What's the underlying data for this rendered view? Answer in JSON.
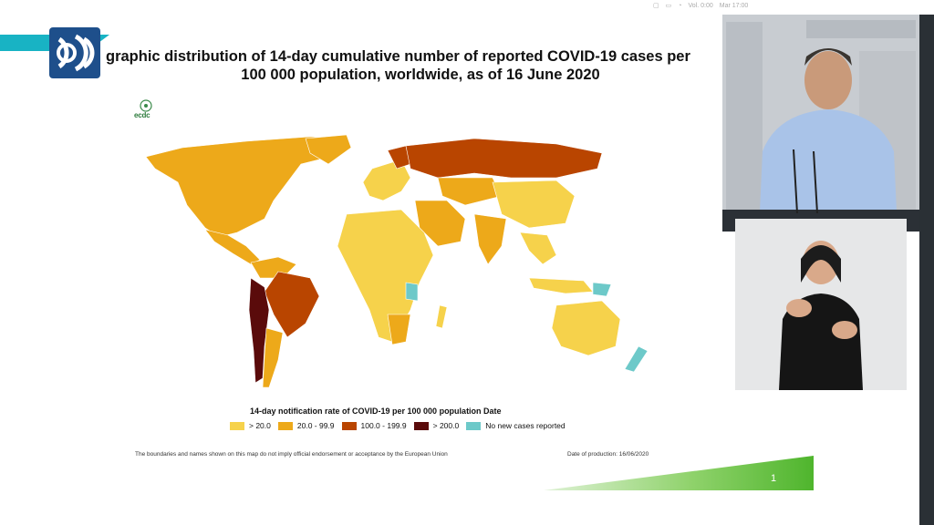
{
  "header": {
    "title_line1": "graphic distribution of 14-day cumulative number of reported COVID-19 cases per",
    "title_line2": "100 000 population, worldwide, as of 16 June 2020"
  },
  "topbar": {
    "time_label": "Vol. 0:00",
    "date_label": "Mar 17:00"
  },
  "ecdc_logo_text": "ecdc",
  "legend": {
    "title": "14-day notification rate of COVID-19 per 100 000 population Date",
    "items": [
      {
        "label": "> 20.0",
        "color": "#f6d24b"
      },
      {
        "label": "20.0 - 99.9",
        "color": "#eda91a"
      },
      {
        "label": "100.0 - 199.9",
        "color": "#b94500"
      },
      {
        "label": "> 200.0",
        "color": "#5a0b0b"
      },
      {
        "label": "No new cases reported",
        "color": "#6dc9c9"
      }
    ]
  },
  "footer": {
    "disclaimer": "The boundaries and names shown on this map do not imply official endorsement or acceptance by the European Union",
    "production_date": "Date of production: 16/06/2020",
    "page_number": "1"
  },
  "map_colors": {
    "low": "#f6d24b",
    "mid": "#eda91a",
    "high": "#b94500",
    "very_high": "#5a0b0b",
    "none": "#6dc9c9"
  }
}
